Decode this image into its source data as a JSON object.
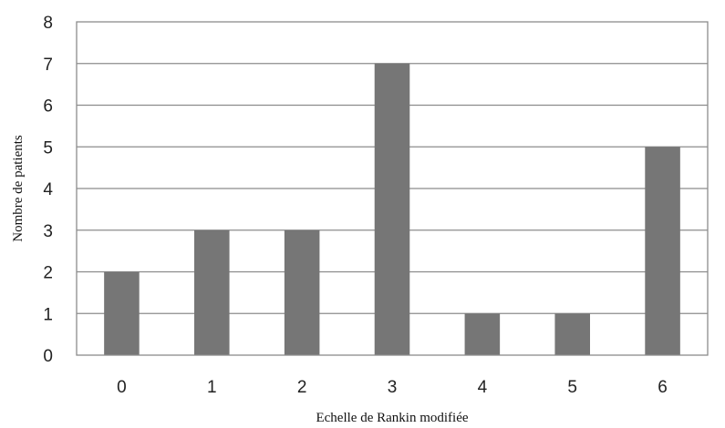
{
  "chart_data": {
    "type": "bar",
    "categories": [
      "0",
      "1",
      "2",
      "3",
      "4",
      "5",
      "6"
    ],
    "values": [
      2,
      3,
      3,
      7,
      1,
      1,
      5
    ],
    "title": "",
    "xlabel": "Echelle de Rankin modifiée",
    "ylabel": "Nombre de patients",
    "ylim": [
      0,
      8
    ],
    "yticks": [
      "0",
      "1",
      "2",
      "3",
      "4",
      "5",
      "6",
      "7",
      "8"
    ],
    "grid": true,
    "legend": "none",
    "colors": {
      "bar": "#767676",
      "grid": "#8c8c8c",
      "text": "#222222"
    }
  }
}
